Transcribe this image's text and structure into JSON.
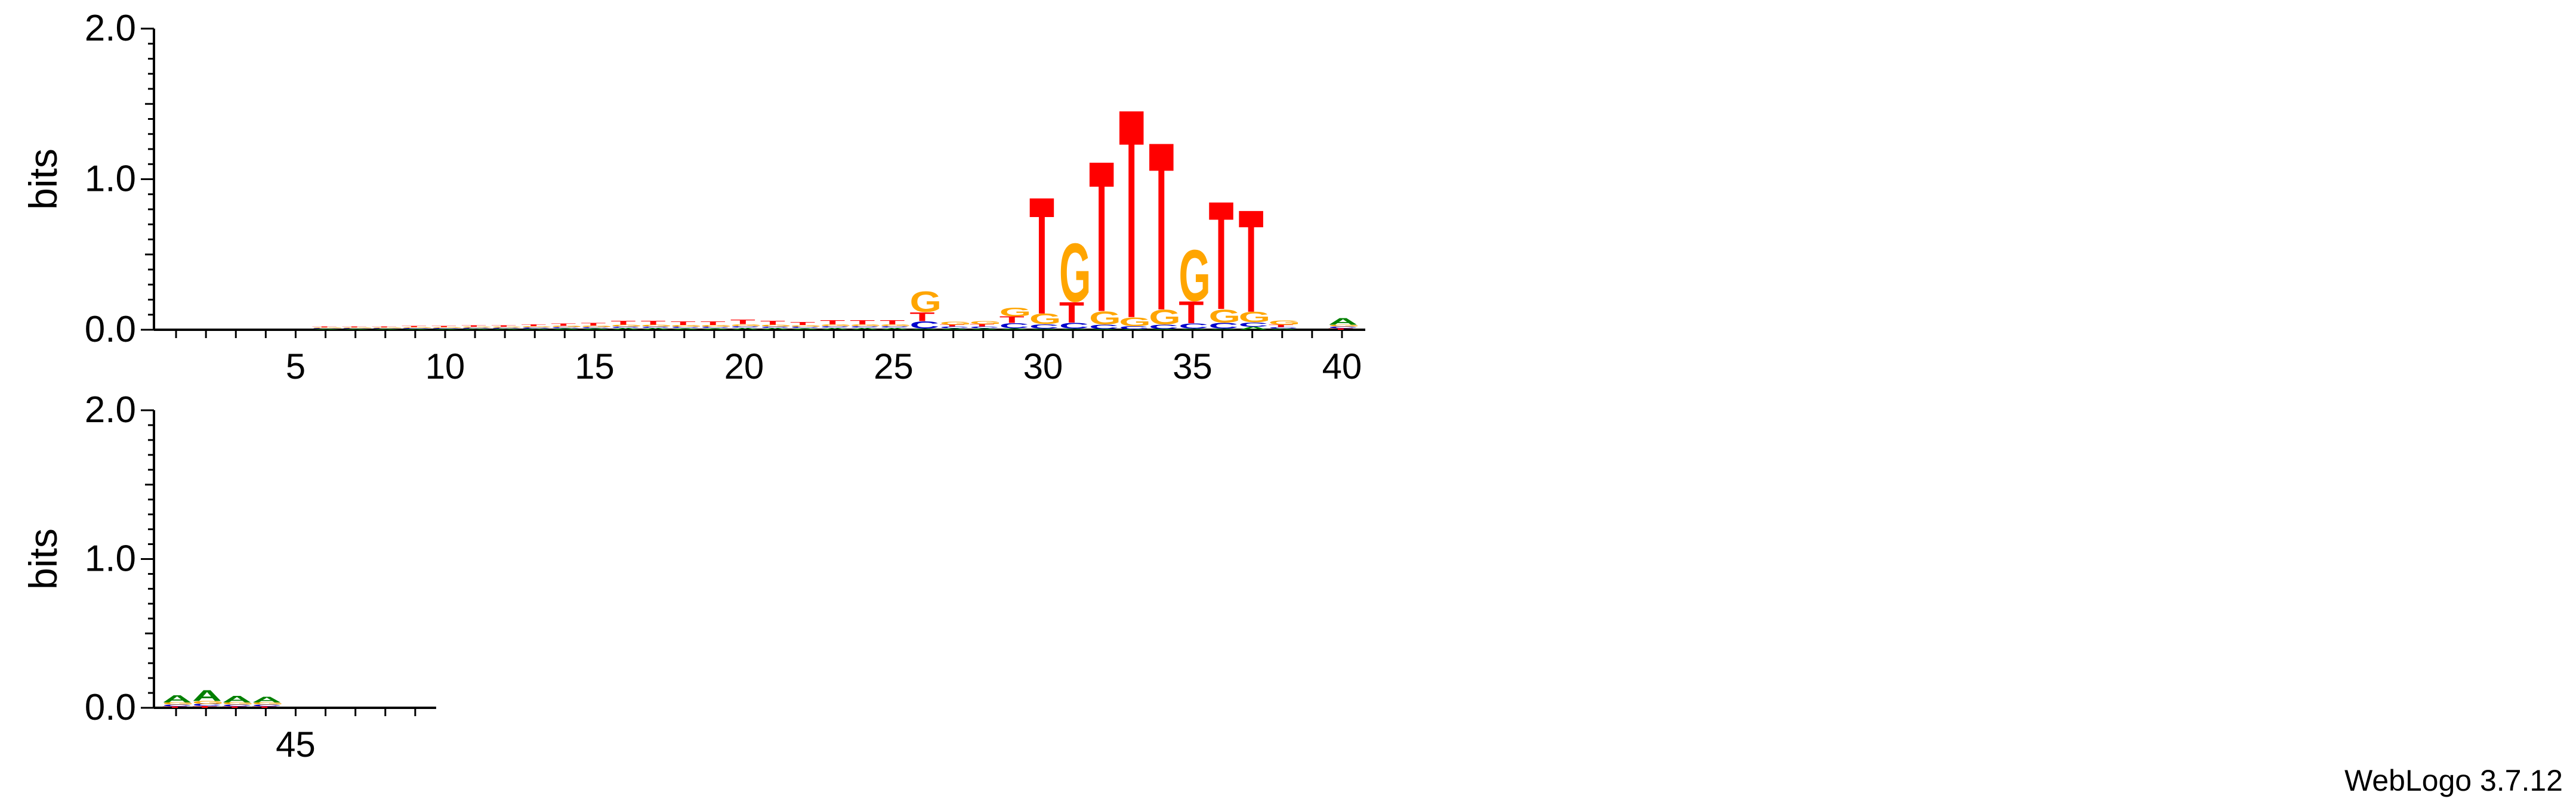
{
  "chart_data": {
    "type": "sequence-logo",
    "ylabel": "bits",
    "ylim": [
      0,
      2
    ],
    "ytick_labels": [
      "0.0",
      "1.0",
      "2.0"
    ],
    "colors": {
      "A": "#008000",
      "C": "#0000cc",
      "G": "#ffa500",
      "T": "#ff0000"
    },
    "rows": [
      {
        "name": "positions 1-40",
        "start": 1,
        "end": 40,
        "xtick_labels": [
          "5",
          "10",
          "15",
          "20",
          "25",
          "30",
          "35",
          "40"
        ]
      },
      {
        "name": "positions 41-49",
        "start": 41,
        "end": 49,
        "xtick_labels": [
          "45"
        ]
      }
    ],
    "positions": [
      {
        "pos": 1,
        "letters": []
      },
      {
        "pos": 2,
        "letters": []
      },
      {
        "pos": 3,
        "letters": []
      },
      {
        "pos": 4,
        "letters": []
      },
      {
        "pos": 5,
        "letters": []
      },
      {
        "pos": 6,
        "letters": [
          [
            "A",
            0.005
          ],
          [
            "C",
            0.005
          ],
          [
            "G",
            0.005
          ],
          [
            "T",
            0.005
          ]
        ]
      },
      {
        "pos": 7,
        "letters": [
          [
            "A",
            0.005
          ],
          [
            "C",
            0.005
          ],
          [
            "G",
            0.005
          ],
          [
            "T",
            0.005
          ]
        ]
      },
      {
        "pos": 8,
        "letters": [
          [
            "A",
            0.005
          ],
          [
            "C",
            0.005
          ],
          [
            "G",
            0.005
          ],
          [
            "T",
            0.006
          ]
        ]
      },
      {
        "pos": 9,
        "letters": [
          [
            "A",
            0.006
          ],
          [
            "C",
            0.006
          ],
          [
            "G",
            0.006
          ],
          [
            "T",
            0.008
          ]
        ]
      },
      {
        "pos": 10,
        "letters": [
          [
            "A",
            0.006
          ],
          [
            "C",
            0.006
          ],
          [
            "G",
            0.006
          ],
          [
            "T",
            0.008
          ]
        ]
      },
      {
        "pos": 11,
        "letters": [
          [
            "A",
            0.007
          ],
          [
            "C",
            0.006
          ],
          [
            "G",
            0.007
          ],
          [
            "T",
            0.01
          ]
        ]
      },
      {
        "pos": 12,
        "letters": [
          [
            "A",
            0.007
          ],
          [
            "C",
            0.006
          ],
          [
            "G",
            0.007
          ],
          [
            "T",
            0.01
          ]
        ]
      },
      {
        "pos": 13,
        "letters": [
          [
            "A",
            0.008
          ],
          [
            "C",
            0.007
          ],
          [
            "G",
            0.008
          ],
          [
            "T",
            0.013
          ]
        ]
      },
      {
        "pos": 14,
        "letters": [
          [
            "A",
            0.009
          ],
          [
            "C",
            0.008
          ],
          [
            "G",
            0.009
          ],
          [
            "T",
            0.016
          ]
        ]
      },
      {
        "pos": 15,
        "letters": [
          [
            "A",
            0.01
          ],
          [
            "C",
            0.008
          ],
          [
            "G",
            0.01
          ],
          [
            "T",
            0.018
          ]
        ]
      },
      {
        "pos": 16,
        "letters": [
          [
            "A",
            0.012
          ],
          [
            "C",
            0.009
          ],
          [
            "G",
            0.012
          ],
          [
            "T",
            0.026
          ]
        ]
      },
      {
        "pos": 17,
        "letters": [
          [
            "A",
            0.012
          ],
          [
            "C",
            0.009
          ],
          [
            "G",
            0.012
          ],
          [
            "T",
            0.026
          ]
        ]
      },
      {
        "pos": 18,
        "letters": [
          [
            "A",
            0.011
          ],
          [
            "C",
            0.009
          ],
          [
            "G",
            0.012
          ],
          [
            "T",
            0.023
          ]
        ]
      },
      {
        "pos": 19,
        "letters": [
          [
            "A",
            0.011
          ],
          [
            "C",
            0.009
          ],
          [
            "G",
            0.012
          ],
          [
            "T",
            0.023
          ]
        ]
      },
      {
        "pos": 20,
        "letters": [
          [
            "A",
            0.014
          ],
          [
            "C",
            0.01
          ],
          [
            "G",
            0.014
          ],
          [
            "T",
            0.032
          ]
        ]
      },
      {
        "pos": 21,
        "letters": [
          [
            "A",
            0.012
          ],
          [
            "C",
            0.009
          ],
          [
            "G",
            0.012
          ],
          [
            "T",
            0.026
          ]
        ]
      },
      {
        "pos": 22,
        "letters": [
          [
            "A",
            0.011
          ],
          [
            "C",
            0.009
          ],
          [
            "G",
            0.011
          ],
          [
            "T",
            0.022
          ]
        ]
      },
      {
        "pos": 23,
        "letters": [
          [
            "A",
            0.013
          ],
          [
            "C",
            0.01
          ],
          [
            "G",
            0.013
          ],
          [
            "T",
            0.03
          ]
        ]
      },
      {
        "pos": 24,
        "letters": [
          [
            "A",
            0.013
          ],
          [
            "C",
            0.01
          ],
          [
            "G",
            0.013
          ],
          [
            "T",
            0.03
          ]
        ]
      },
      {
        "pos": 25,
        "letters": [
          [
            "A",
            0.013
          ],
          [
            "C",
            0.01
          ],
          [
            "G",
            0.013
          ],
          [
            "T",
            0.03
          ]
        ]
      },
      {
        "pos": 26,
        "letters": [
          [
            "A",
            0.008
          ],
          [
            "C",
            0.05
          ],
          [
            "T",
            0.06
          ],
          [
            "G",
            0.14
          ]
        ]
      },
      {
        "pos": 27,
        "letters": [
          [
            "A",
            0.01
          ],
          [
            "C",
            0.012
          ],
          [
            "T",
            0.012
          ],
          [
            "G",
            0.02
          ]
        ]
      },
      {
        "pos": 28,
        "letters": [
          [
            "A",
            0.01
          ],
          [
            "C",
            0.012
          ],
          [
            "T",
            0.015
          ],
          [
            "G",
            0.02
          ]
        ]
      },
      {
        "pos": 29,
        "letters": [
          [
            "A",
            0.01
          ],
          [
            "C",
            0.035
          ],
          [
            "T",
            0.045
          ],
          [
            "G",
            0.06
          ]
        ]
      },
      {
        "pos": 30,
        "letters": [
          [
            "A",
            0.008
          ],
          [
            "C",
            0.03
          ],
          [
            "G",
            0.07
          ],
          [
            "T",
            0.8
          ]
        ]
      },
      {
        "pos": 31,
        "letters": [
          [
            "A",
            0.008
          ],
          [
            "C",
            0.04
          ],
          [
            "T",
            0.14
          ],
          [
            "G",
            0.4
          ]
        ]
      },
      {
        "pos": 32,
        "letters": [
          [
            "A",
            0.005
          ],
          [
            "C",
            0.03
          ],
          [
            "G",
            0.09
          ],
          [
            "T",
            1.03
          ]
        ]
      },
      {
        "pos": 33,
        "letters": [
          [
            "A",
            0.004
          ],
          [
            "C",
            0.02
          ],
          [
            "G",
            0.06
          ],
          [
            "T",
            1.43
          ]
        ]
      },
      {
        "pos": 34,
        "letters": [
          [
            "A",
            0.005
          ],
          [
            "C",
            0.03
          ],
          [
            "G",
            0.1
          ],
          [
            "T",
            1.15
          ]
        ]
      },
      {
        "pos": 35,
        "letters": [
          [
            "A",
            0.008
          ],
          [
            "C",
            0.035
          ],
          [
            "T",
            0.15
          ],
          [
            "G",
            0.35
          ]
        ]
      },
      {
        "pos": 36,
        "letters": [
          [
            "A",
            0.008
          ],
          [
            "C",
            0.04
          ],
          [
            "G",
            0.09
          ],
          [
            "T",
            0.74
          ]
        ]
      },
      {
        "pos": 37,
        "letters": [
          [
            "A",
            0.02
          ],
          [
            "C",
            0.03
          ],
          [
            "G",
            0.07
          ],
          [
            "T",
            0.7
          ]
        ]
      },
      {
        "pos": 38,
        "letters": [
          [
            "A",
            0.008
          ],
          [
            "C",
            0.01
          ],
          [
            "T",
            0.015
          ],
          [
            "G",
            0.03
          ]
        ]
      },
      {
        "pos": 39,
        "letters": []
      },
      {
        "pos": 40,
        "letters": [
          [
            "T",
            0.01
          ],
          [
            "C",
            0.012
          ],
          [
            "G",
            0.012
          ],
          [
            "A",
            0.045
          ]
        ]
      },
      {
        "pos": 41,
        "letters": [
          [
            "T",
            0.01
          ],
          [
            "C",
            0.012
          ],
          [
            "G",
            0.015
          ],
          [
            "A",
            0.05
          ]
        ]
      },
      {
        "pos": 42,
        "letters": [
          [
            "T",
            0.012
          ],
          [
            "C",
            0.015
          ],
          [
            "G",
            0.02
          ],
          [
            "A",
            0.075
          ]
        ]
      },
      {
        "pos": 43,
        "letters": [
          [
            "T",
            0.01
          ],
          [
            "C",
            0.012
          ],
          [
            "G",
            0.015
          ],
          [
            "A",
            0.045
          ]
        ]
      },
      {
        "pos": 44,
        "letters": [
          [
            "T",
            0.01
          ],
          [
            "C",
            0.012
          ],
          [
            "G",
            0.015
          ],
          [
            "A",
            0.04
          ]
        ]
      },
      {
        "pos": 45,
        "letters": []
      },
      {
        "pos": 46,
        "letters": []
      },
      {
        "pos": 47,
        "letters": []
      },
      {
        "pos": 48,
        "letters": []
      },
      {
        "pos": 49,
        "letters": []
      }
    ]
  },
  "footer": {
    "credit": "WebLogo 3.7.12"
  }
}
